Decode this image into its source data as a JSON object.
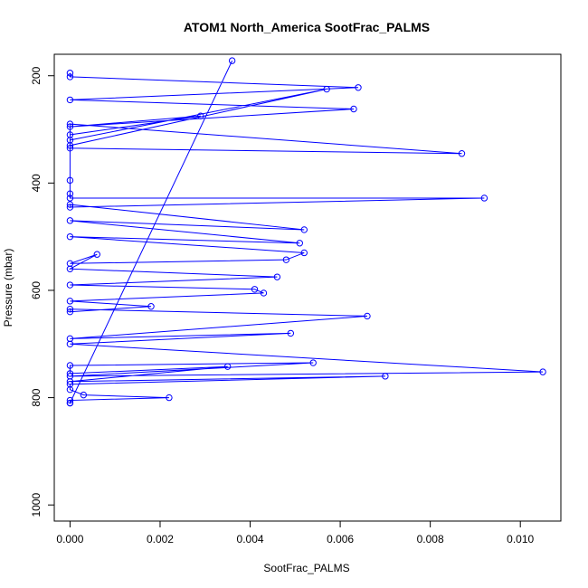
{
  "chart_data": {
    "type": "line",
    "title": "ATOM1 North_America SootFrac_PALMS",
    "xlabel": "SootFrac_PALMS",
    "ylabel": "Pressure (mbar)",
    "xlim": [
      -0.00035,
      0.0109
    ],
    "ylim": [
      1030,
      160
    ],
    "y_inverted": true,
    "x_ticks": [
      0.0,
      0.002,
      0.004,
      0.006,
      0.008,
      0.01
    ],
    "x_tick_labels": [
      "0.000",
      "0.002",
      "0.004",
      "0.006",
      "0.008",
      "0.010"
    ],
    "y_ticks": [
      200,
      400,
      600,
      800,
      1000
    ],
    "y_tick_labels": [
      "200",
      "400",
      "600",
      "800",
      "1000"
    ],
    "grid": false,
    "legend": "none",
    "series": [
      {
        "color": "#0000ff",
        "markers": "open-circle",
        "x": [
          0,
          0,
          0.0064,
          0,
          0.0063,
          0,
          0.0029,
          0,
          0,
          0.0057,
          0,
          0,
          0.0087,
          0,
          0,
          0,
          0,
          0.0092,
          0,
          0,
          0.0052,
          0,
          0.0051,
          0,
          0.0052,
          0.0048,
          0,
          0.0006,
          0,
          0.0046,
          0,
          0.0041,
          0.0043,
          0,
          0.0018,
          0,
          0,
          0.0066,
          0,
          0.0049,
          0,
          0.0105,
          0,
          0.0054,
          0,
          0,
          0.0035,
          0,
          0.007,
          0,
          0,
          0.0003,
          0.0022,
          0,
          0,
          0,
          0.0036
        ],
        "y": [
          195,
          202,
          222,
          245,
          262,
          295,
          275,
          310,
          320,
          225,
          330,
          335,
          345,
          290,
          395,
          420,
          428,
          428,
          445,
          440,
          487,
          470,
          512,
          500,
          530,
          543,
          550,
          533,
          560,
          575,
          590,
          598,
          605,
          620,
          630,
          640,
          635,
          648,
          690,
          680,
          700,
          752,
          760,
          735,
          740,
          755,
          742,
          770,
          760,
          775,
          785,
          795,
          800,
          805,
          810,
          810,
          172
        ]
      }
    ]
  }
}
